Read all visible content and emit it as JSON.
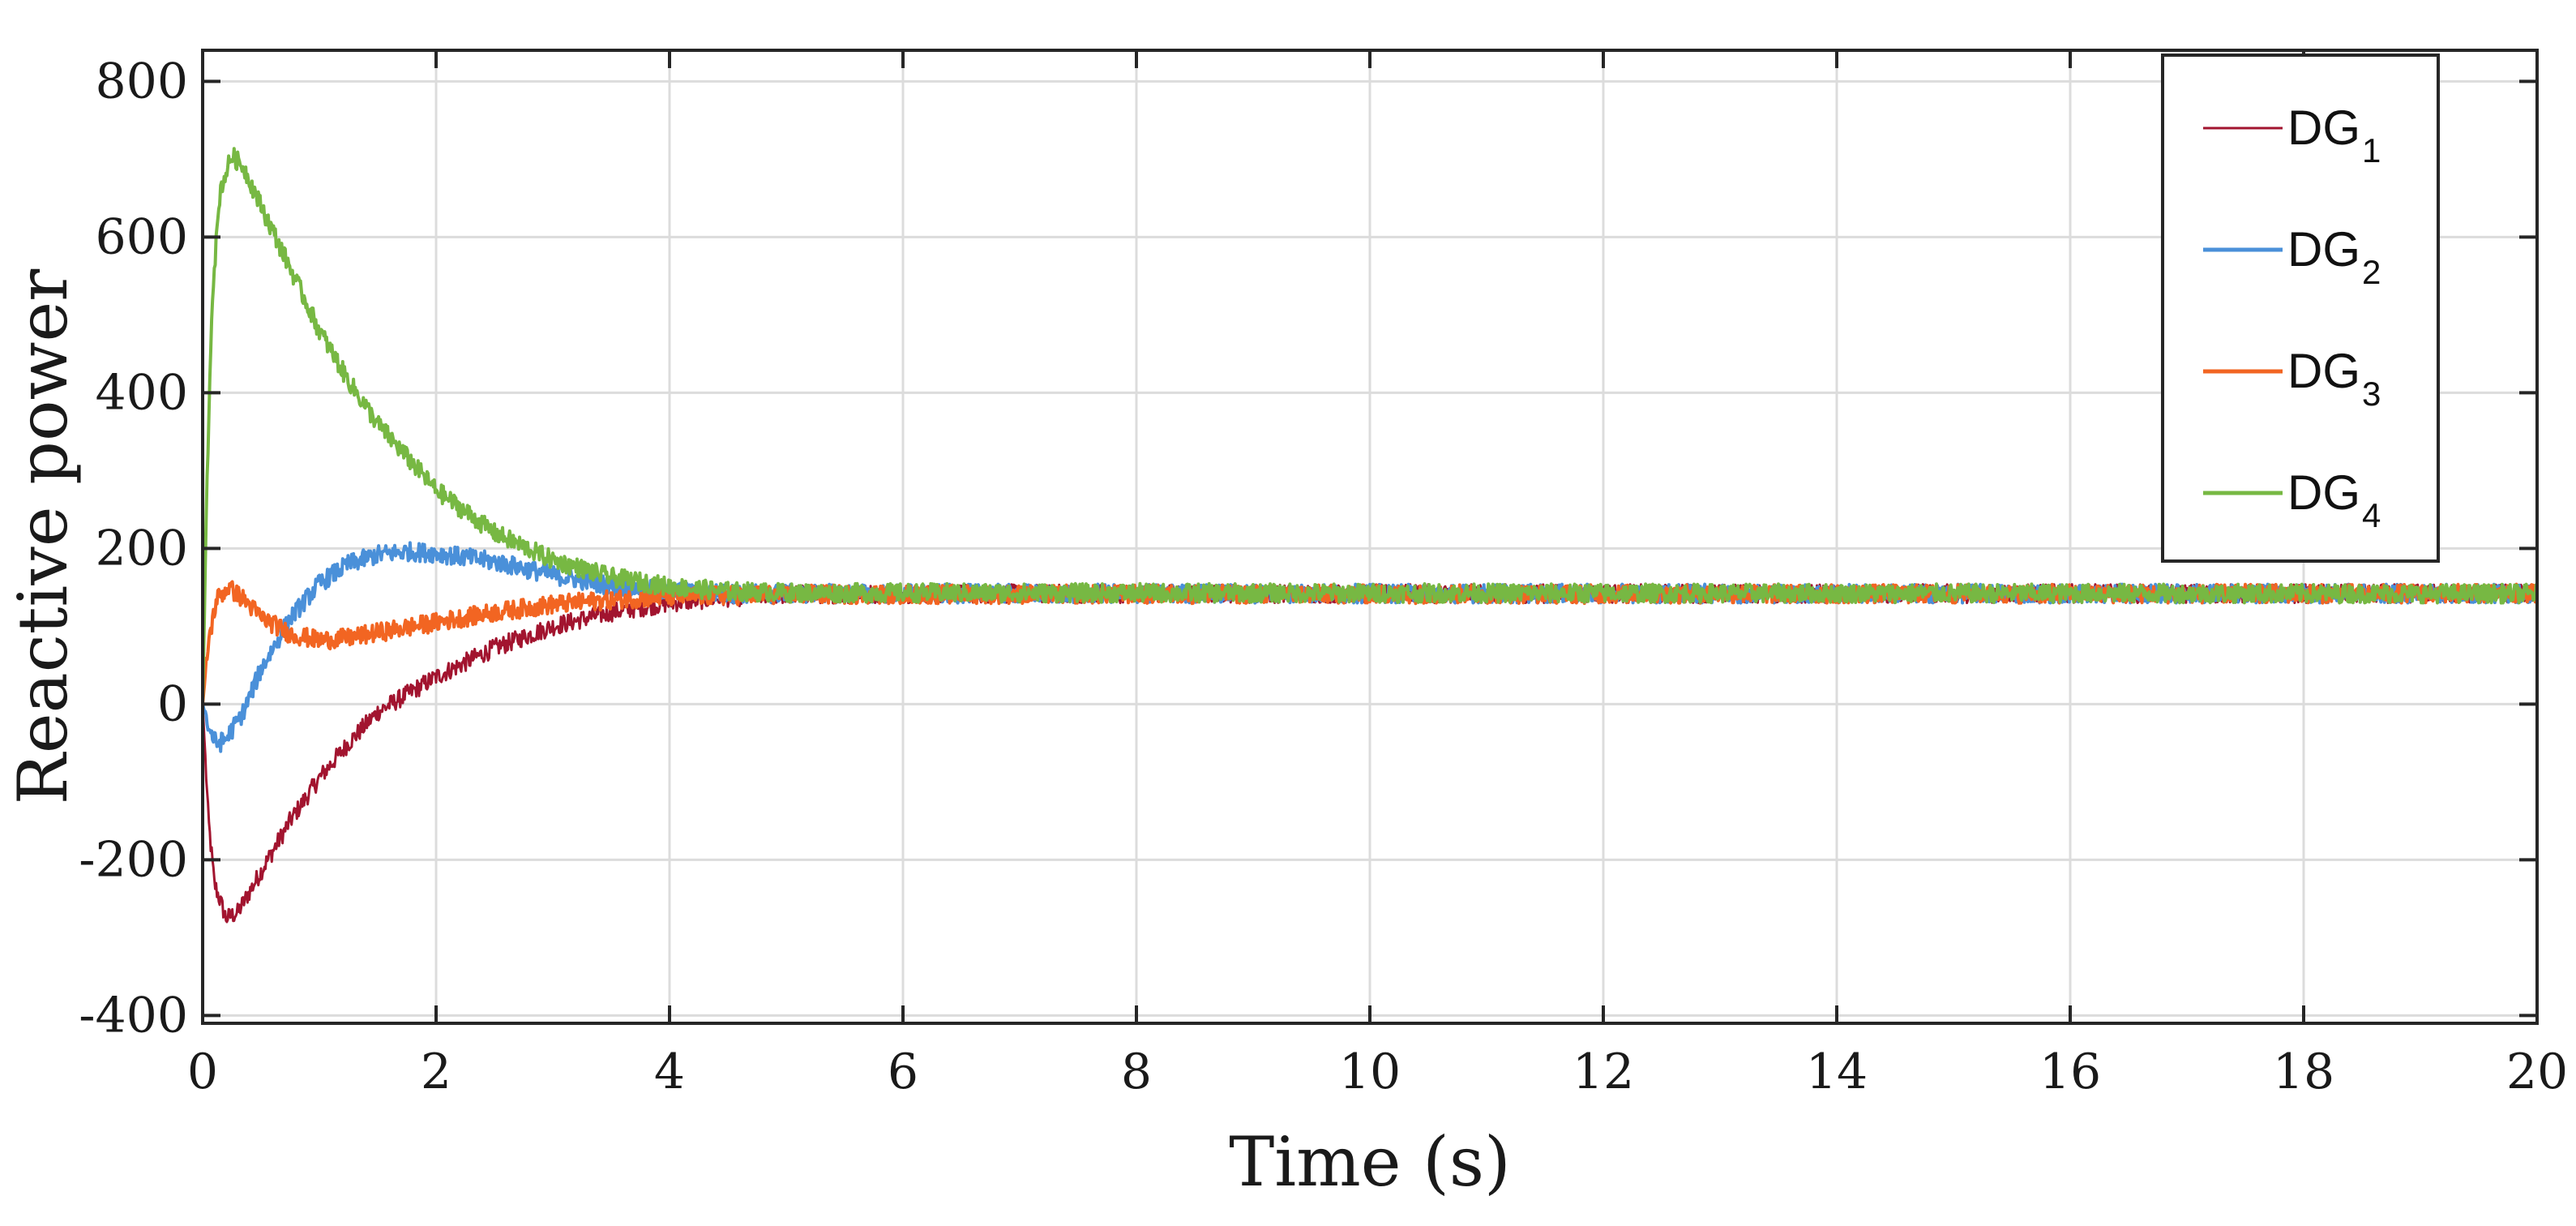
{
  "chart_data": {
    "type": "line",
    "title": "",
    "xlabel": "Time (s)",
    "ylabel": "Reactive power",
    "xlim": [
      0,
      20
    ],
    "ylim": [
      -410,
      840
    ],
    "xticks": [
      0,
      2,
      4,
      6,
      8,
      10,
      12,
      14,
      16,
      18,
      20
    ],
    "yticks": [
      -400,
      -200,
      0,
      200,
      400,
      600,
      800
    ],
    "xtick_labels": [
      "0",
      "2",
      "4",
      "6",
      "8",
      "10",
      "12",
      "14",
      "16",
      "18",
      "20"
    ],
    "ytick_labels": [
      "-400",
      "-200",
      "0",
      "200",
      "400",
      "600",
      "800"
    ],
    "grid": true,
    "legend_position": "top-right",
    "noise_amplitude": 12,
    "series": [
      {
        "name": "DG",
        "subscript": "1",
        "color": "#A2142F",
        "points": [
          [
            0,
            0
          ],
          [
            0.05,
            -150
          ],
          [
            0.1,
            -230
          ],
          [
            0.2,
            -275
          ],
          [
            0.3,
            -268
          ],
          [
            0.5,
            -215
          ],
          [
            0.75,
            -150
          ],
          [
            1.0,
            -95
          ],
          [
            1.25,
            -50
          ],
          [
            1.5,
            -10
          ],
          [
            2.0,
            35
          ],
          [
            2.5,
            72
          ],
          [
            3.0,
            100
          ],
          [
            3.5,
            118
          ],
          [
            4.0,
            130
          ],
          [
            4.5,
            137
          ],
          [
            5.0,
            141
          ],
          [
            6.0,
            142
          ],
          [
            20.0,
            142
          ]
        ]
      },
      {
        "name": "DG",
        "subscript": "2",
        "color": "#4A90D9",
        "points": [
          [
            0,
            0
          ],
          [
            0.05,
            -30
          ],
          [
            0.12,
            -52
          ],
          [
            0.2,
            -45
          ],
          [
            0.35,
            -10
          ],
          [
            0.5,
            45
          ],
          [
            0.75,
            110
          ],
          [
            1.0,
            155
          ],
          [
            1.25,
            180
          ],
          [
            1.5,
            192
          ],
          [
            1.75,
            196
          ],
          [
            2.0,
            194
          ],
          [
            2.5,
            183
          ],
          [
            3.0,
            166
          ],
          [
            3.5,
            152
          ],
          [
            4.0,
            145
          ],
          [
            4.5,
            142
          ],
          [
            5.0,
            142
          ],
          [
            20.0,
            142
          ]
        ]
      },
      {
        "name": "DG",
        "subscript": "3",
        "color": "#F26522",
        "points": [
          [
            0,
            0
          ],
          [
            0.05,
            80
          ],
          [
            0.12,
            135
          ],
          [
            0.22,
            150
          ],
          [
            0.35,
            135
          ],
          [
            0.5,
            112
          ],
          [
            0.75,
            90
          ],
          [
            1.0,
            82
          ],
          [
            1.25,
            85
          ],
          [
            1.5,
            92
          ],
          [
            2.0,
            105
          ],
          [
            2.5,
            118
          ],
          [
            3.0,
            128
          ],
          [
            3.5,
            134
          ],
          [
            4.0,
            138
          ],
          [
            5.0,
            141
          ],
          [
            20.0,
            142
          ]
        ]
      },
      {
        "name": "DG",
        "subscript": "4",
        "color": "#77B843",
        "points": [
          [
            0,
            0
          ],
          [
            0.04,
            300
          ],
          [
            0.08,
            520
          ],
          [
            0.15,
            660
          ],
          [
            0.25,
            705
          ],
          [
            0.35,
            690
          ],
          [
            0.5,
            640
          ],
          [
            0.75,
            560
          ],
          [
            1.0,
            480
          ],
          [
            1.25,
            415
          ],
          [
            1.5,
            360
          ],
          [
            2.0,
            275
          ],
          [
            2.5,
            220
          ],
          [
            3.0,
            185
          ],
          [
            3.5,
            163
          ],
          [
            4.0,
            151
          ],
          [
            4.5,
            145
          ],
          [
            5.0,
            143
          ],
          [
            20.0,
            142
          ]
        ]
      }
    ]
  }
}
